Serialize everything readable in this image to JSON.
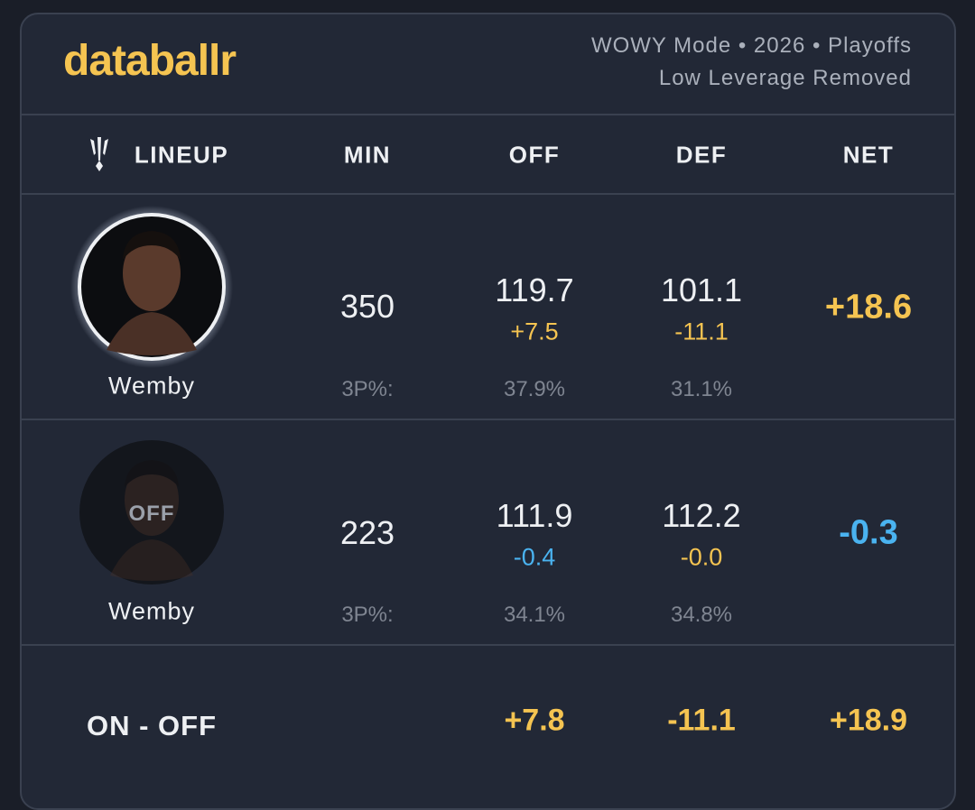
{
  "header": {
    "logo": "databallr",
    "subtitle": [
      "WOWY Mode • 2026 • Playoffs",
      "Low Leverage Removed"
    ]
  },
  "table": {
    "columns": [
      "LINEUP",
      "MIN",
      "OFF",
      "DEF",
      "NET"
    ],
    "rows": [
      {
        "player": "Wemby",
        "min": "350",
        "off": "119.7",
        "off_diff": "+7.5",
        "def": "101.1",
        "def_diff": "-11.1",
        "net": "+18.6",
        "three_label": "3P%:",
        "off_3p": "37.9%",
        "def_3p": "31.1%"
      },
      {
        "player": "Wemby",
        "badge": "OFF",
        "min": "223",
        "off": "111.9",
        "off_diff": "-0.4",
        "def": "112.2",
        "def_diff": "-0.0",
        "net": "-0.3",
        "three_label": "3P%:",
        "off_3p": "34.1%",
        "def_3p": "34.8%"
      }
    ],
    "footer": {
      "label": "ON - OFF",
      "off": "+7.8",
      "def": "-11.1",
      "net": "+18.9"
    }
  }
}
